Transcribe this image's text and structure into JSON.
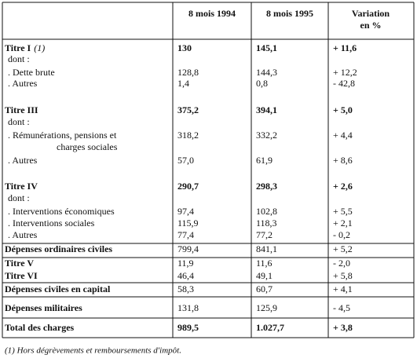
{
  "header": {
    "col1": "8 mois 1994",
    "col2": "8 mois 1995",
    "col3": [
      "Variation",
      "en %"
    ]
  },
  "rows": [
    {
      "label": "Titre I",
      "note": "(1)",
      "values": [
        "130",
        "145,1",
        "+ 11,6"
      ]
    },
    {
      "label": "dont :"
    },
    {
      "label": ". Dette brute",
      "values": [
        "128,8",
        "144,3",
        "+ 12,2"
      ]
    },
    {
      "label": ". Autres",
      "values": [
        "1,4",
        "0,8",
        "- 42,8"
      ]
    },
    {
      "label": "Titre III",
      "values": [
        "375,2",
        "394,1",
        "+ 5,0"
      ]
    },
    {
      "label": "dont :"
    },
    {
      "label": ". Rémunérations, pensions et",
      "label2": "charges sociales",
      "values": [
        "318,2",
        "332,2",
        "+ 4,4"
      ]
    },
    {
      "label": ". Autres",
      "values": [
        "57,0",
        "61,9",
        "+ 8,6"
      ]
    },
    {
      "label": "Titre IV",
      "values": [
        "290,7",
        "298,3",
        "+ 2,6"
      ]
    },
    {
      "label": "dont :"
    },
    {
      "label": ". Interventions économiques",
      "values": [
        "97,4",
        "102,8",
        "+ 5,5"
      ]
    },
    {
      "label": ". Interventions sociales",
      "values": [
        "115,9",
        "118,3",
        "+ 2,1"
      ]
    },
    {
      "label": ". Autres",
      "values": [
        "77,4",
        "77,2",
        "- 0,2"
      ]
    },
    {
      "label": "Dépenses ordinaires civiles",
      "values": [
        "799,4",
        "841,1",
        "+ 5,2"
      ]
    },
    {
      "label": "Titre V",
      "values": [
        "11,9",
        "11,6",
        "- 2,0"
      ]
    },
    {
      "label": "Titre VI",
      "values": [
        "46,4",
        "49,1",
        "+ 5,8"
      ]
    },
    {
      "label": "Dépenses civiles en capital",
      "values": [
        "58,3",
        "60,7",
        "+ 4,1"
      ]
    },
    {
      "label": "Dépenses militaires",
      "values": [
        "131,8",
        "125,9",
        "- 4,5"
      ]
    },
    {
      "label": "Total des charges",
      "values": [
        "989,5",
        "1.027,7",
        "+ 3,8"
      ]
    }
  ],
  "footnote": "(1) Hors dégrèvements et remboursements d'impôt."
}
